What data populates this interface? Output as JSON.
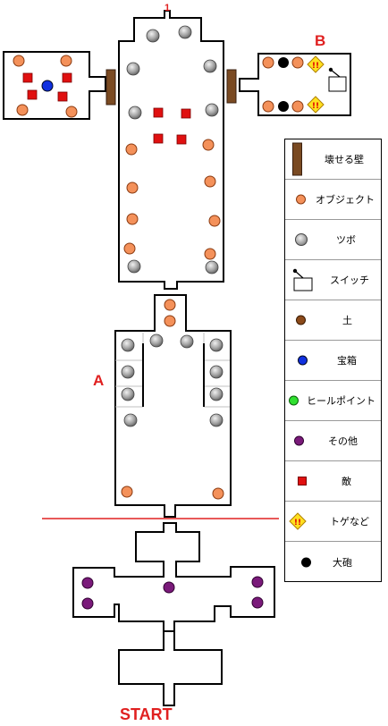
{
  "map": {
    "labels": {
      "top_marker": "1",
      "room_a": "A",
      "room_b": "B",
      "start": "START"
    }
  },
  "legend": {
    "items": [
      {
        "key": "breakable_wall",
        "label": "壊せる壁",
        "color": "#7a4a22"
      },
      {
        "key": "object",
        "label": "オブジェクト",
        "color": "#f4915a"
      },
      {
        "key": "pot",
        "label": "ツボ",
        "color": "#a8a8a8"
      },
      {
        "key": "switch",
        "label": "スイッチ",
        "color": "#ffffff"
      },
      {
        "key": "soil",
        "label": "土",
        "color": "#8b4a1a"
      },
      {
        "key": "treasure",
        "label": "宝箱",
        "color": "#1030e0"
      },
      {
        "key": "heal_point",
        "label": "ヒールポイント",
        "color": "#30e030"
      },
      {
        "key": "other",
        "label": "その他",
        "color": "#7a1a7a"
      },
      {
        "key": "enemy",
        "label": "敵",
        "color": "#e01010"
      },
      {
        "key": "spike",
        "label": "トゲなど",
        "color": "#ffe020"
      },
      {
        "key": "cannon",
        "label": "大砲",
        "color": "#000000"
      }
    ]
  }
}
